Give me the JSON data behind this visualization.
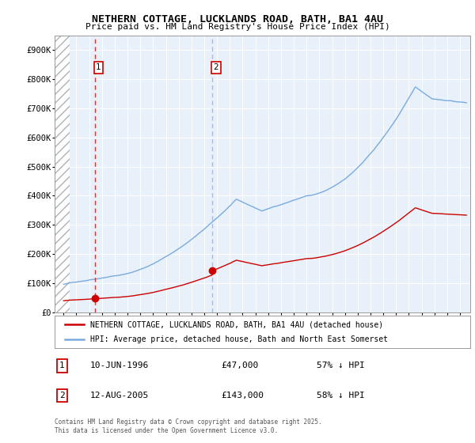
{
  "title_line1": "NETHERN COTTAGE, LUCKLANDS ROAD, BATH, BA1 4AU",
  "title_line2": "Price paid vs. HM Land Registry's House Price Index (HPI)",
  "legend_line1": "NETHERN COTTAGE, LUCKLANDS ROAD, BATH, BA1 4AU (detached house)",
  "legend_line2": "HPI: Average price, detached house, Bath and North East Somerset",
  "annotation1_date": "10-JUN-1996",
  "annotation1_price": "£47,000",
  "annotation1_hpi": "57% ↓ HPI",
  "annotation2_date": "12-AUG-2005",
  "annotation2_price": "£143,000",
  "annotation2_hpi": "58% ↓ HPI",
  "footer": "Contains HM Land Registry data © Crown copyright and database right 2025.\nThis data is licensed under the Open Government Licence v3.0.",
  "hpi_color": "#7aabde",
  "price_color": "#cc0000",
  "vline1_color": "#dd3333",
  "vline2_color": "#aabbdd",
  "annotation_box_color": "#cc0000",
  "background_color": "#ddeeff",
  "plot_bg_color": "#e8f0fa",
  "ylim": [
    0,
    950000
  ],
  "yticks": [
    0,
    100000,
    200000,
    300000,
    400000,
    500000,
    600000,
    700000,
    800000,
    900000
  ],
  "ytick_labels": [
    "£0",
    "£100K",
    "£200K",
    "£300K",
    "£400K",
    "£500K",
    "£600K",
    "£700K",
    "£800K",
    "£900K"
  ],
  "purchase1_year": 1996.44,
  "purchase1_price": 47000,
  "purchase2_year": 2005.62,
  "purchase2_price": 143000,
  "xlim_left": 1993.3,
  "xlim_right": 2025.8,
  "hatch_end": 1994.5
}
